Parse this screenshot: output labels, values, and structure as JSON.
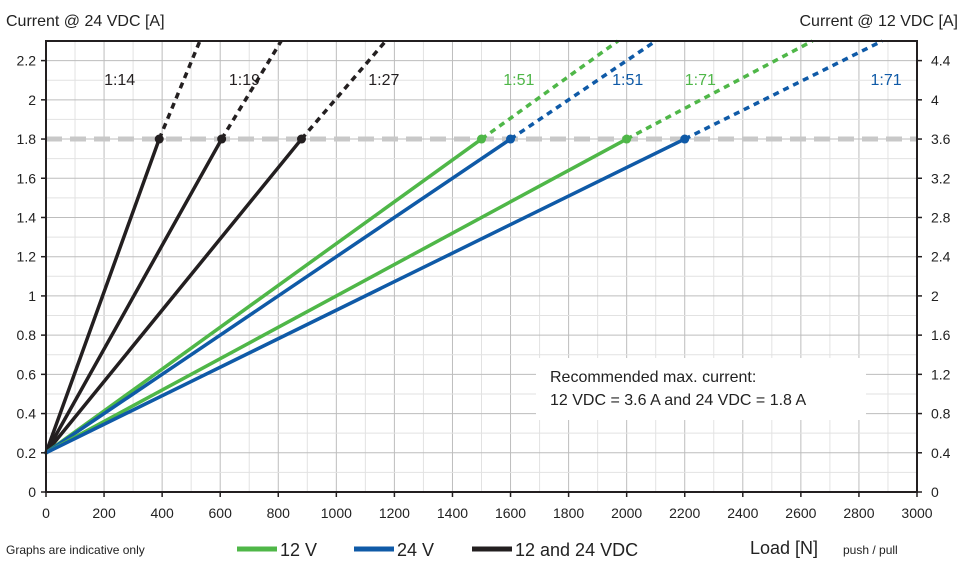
{
  "chart_data": {
    "type": "line",
    "title": "",
    "ylabel_left": "Current @ 24 VDC [A]",
    "ylabel_right": "Current @ 12 VDC [A]",
    "xlabel": "Load [N]",
    "xlabel_suffix": "push / pull",
    "xlim": [
      0,
      3000
    ],
    "ylim_left": [
      0,
      2.3
    ],
    "ylim_right": [
      0,
      4.6
    ],
    "x_ticks": [
      "0",
      "200",
      "400",
      "600",
      "800",
      "1000",
      "1200",
      "1400",
      "1600",
      "1800",
      "2000",
      "2200",
      "2400",
      "2600",
      "2800",
      "3000"
    ],
    "y_ticks_left": [
      "0",
      "0.2",
      "0.4",
      "0.6",
      "0.8",
      "1",
      "1.2",
      "1.4",
      "1.6",
      "1.8",
      "2",
      "2.2"
    ],
    "y_ticks_right": [
      "0",
      "0.4",
      "0.8",
      "1.2",
      "1.6",
      "2",
      "2.4",
      "2.8",
      "3.2",
      "3.6",
      "4",
      "4.4"
    ],
    "grid": true,
    "max_current_line_y": 1.8,
    "series": [
      {
        "name": "1:14",
        "group": "12 and 24 VDC",
        "color": "#231f20",
        "points": [
          [
            0,
            0.2
          ],
          [
            390,
            1.8
          ],
          [
            530,
            2.3
          ]
        ],
        "marker_x": 390,
        "label_x": 200,
        "label_y": 2.1
      },
      {
        "name": "1:19",
        "group": "12 and 24 VDC",
        "color": "#231f20",
        "points": [
          [
            0,
            0.2
          ],
          [
            605,
            1.8
          ],
          [
            810,
            2.3
          ]
        ],
        "marker_x": 605,
        "label_x": 630,
        "label_y": 2.1
      },
      {
        "name": "1:27",
        "group": "12 and 24 VDC",
        "color": "#231f20",
        "points": [
          [
            0,
            0.2
          ],
          [
            880,
            1.8
          ],
          [
            1170,
            2.3
          ]
        ],
        "marker_x": 880,
        "label_x": 1110,
        "label_y": 2.1
      },
      {
        "name": "1:51",
        "group": "12 V",
        "color": "#4fb748",
        "points": [
          [
            0,
            0.2
          ],
          [
            1500,
            1.8
          ],
          [
            1970,
            2.3
          ]
        ],
        "marker_x": 1500,
        "label_x": 1575,
        "label_y": 2.1
      },
      {
        "name": "1:51",
        "group": "24 V",
        "color": "#0f5aa7",
        "points": [
          [
            0,
            0.2
          ],
          [
            1600,
            1.8
          ],
          [
            2100,
            2.3
          ]
        ],
        "marker_x": 1600,
        "label_x": 1950,
        "label_y": 2.1
      },
      {
        "name": "1:71",
        "group": "12 V",
        "color": "#4fb748",
        "points": [
          [
            0,
            0.2
          ],
          [
            2000,
            1.8
          ],
          [
            2640,
            2.3
          ]
        ],
        "marker_x": 2000,
        "label_x": 2200,
        "label_y": 2.1
      },
      {
        "name": "1:71",
        "group": "24 V",
        "color": "#0f5aa7",
        "points": [
          [
            0,
            0.2
          ],
          [
            2200,
            1.8
          ],
          [
            2880,
            2.3
          ]
        ],
        "marker_x": 2200,
        "label_x": 2840,
        "label_y": 2.1
      }
    ],
    "legend": [
      {
        "label": "12 V",
        "color": "#4fb748"
      },
      {
        "label": "24 V",
        "color": "#0f5aa7"
      },
      {
        "label": "12 and 24 VDC",
        "color": "#231f20"
      }
    ],
    "annotation": [
      "Recommended max. current:",
      "12 VDC = 3.6 A and 24 VDC = 1.8 A"
    ],
    "footnote": "Graphs are indicative only"
  }
}
